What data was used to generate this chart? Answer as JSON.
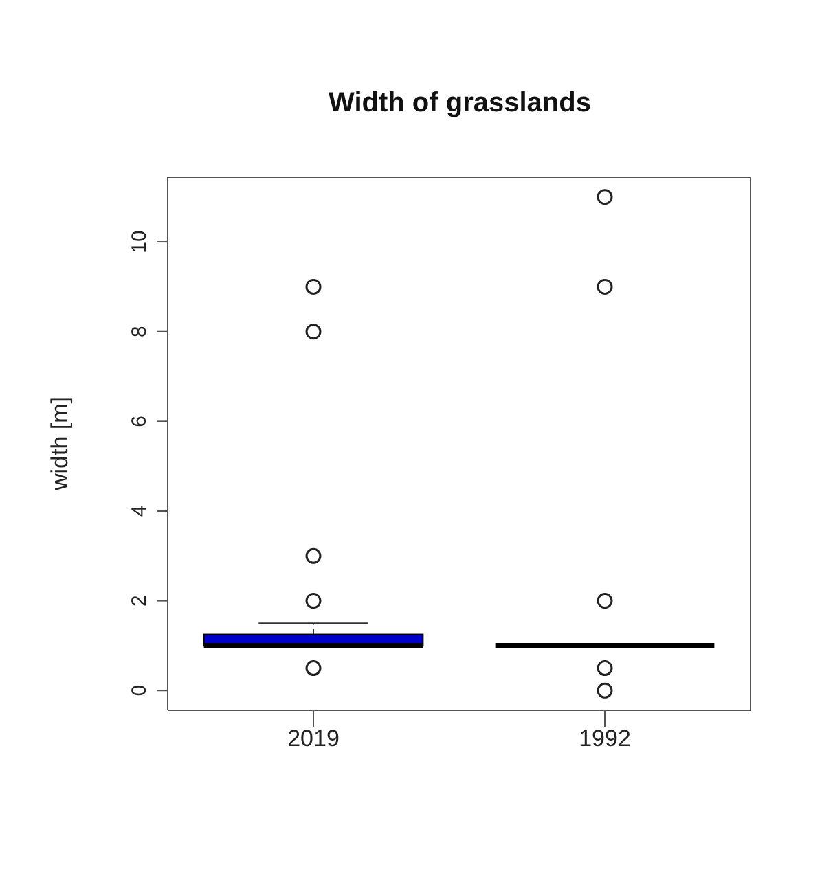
{
  "chart_data": {
    "type": "box",
    "title": "Width of grasslands",
    "ylabel": "width [m]",
    "categories": [
      "2019",
      "1992"
    ],
    "colors": [
      "#0000cc",
      "#000000"
    ],
    "boxes": [
      {
        "low": 1,
        "q1": 1,
        "median": 1,
        "q3": 1.25,
        "high": 1.5,
        "outliers": [
          0.5,
          2,
          3,
          8,
          9
        ]
      },
      {
        "low": 1,
        "q1": 1,
        "median": 1,
        "q3": 1,
        "high": 1,
        "outliers": [
          0,
          0.5,
          2,
          9,
          11
        ]
      }
    ],
    "ylim": [
      -0.44,
      11.44
    ],
    "yticks": [
      0,
      2,
      4,
      6,
      8,
      10
    ],
    "marker": "circle"
  }
}
